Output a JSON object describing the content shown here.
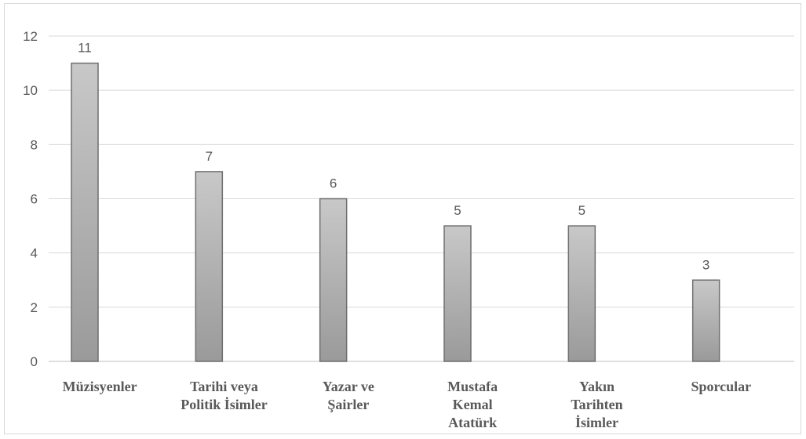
{
  "chart_data": {
    "type": "bar",
    "title": "",
    "xlabel": "",
    "ylabel": "",
    "categories": [
      [
        "Müzisyenler"
      ],
      [
        "Tarihi veya",
        "Politik İsimler"
      ],
      [
        "Yazar ve",
        "Şairler"
      ],
      [
        "Mustafa",
        "Kemal",
        "Atatürk"
      ],
      [
        "Yakın",
        "Tarihten",
        "İsimler"
      ],
      [
        "Sporcular"
      ]
    ],
    "values": [
      11,
      7,
      6,
      5,
      5,
      3
    ],
    "ylim": [
      0,
      12
    ],
    "yticks": [
      0,
      2,
      4,
      6,
      8,
      10,
      12
    ],
    "grid": true,
    "legend": "none",
    "colors": {
      "bar_top": "#c8c8c8",
      "bar_bottom": "#9a9a9a",
      "bar_stroke": "#6f6f6f",
      "grid": "#d9d9d9",
      "text": "#595959"
    }
  }
}
